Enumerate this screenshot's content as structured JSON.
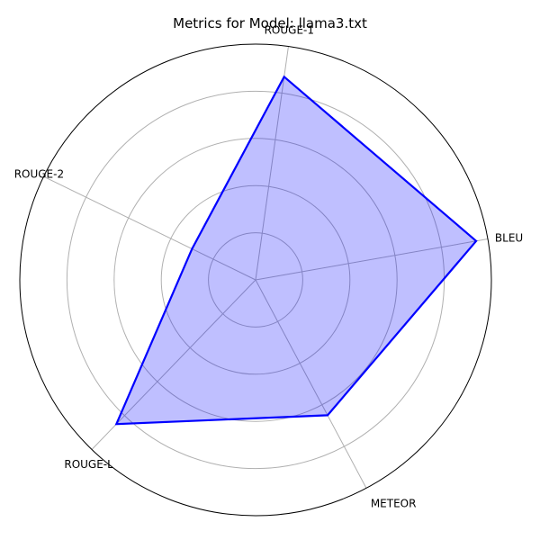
{
  "chart_data": {
    "type": "radar",
    "title": "Metrics for Model: llama3.txt",
    "categories": [
      "BLEU",
      "ROUGE-1",
      "ROUGE-2",
      "ROUGE-L",
      "METEOR"
    ],
    "values": [
      0.95,
      0.87,
      0.3,
      0.85,
      0.65
    ],
    "rlim": [
      0,
      1
    ],
    "rgrid": [
      0.2,
      0.4,
      0.6,
      0.8,
      1.0
    ],
    "grid": true,
    "legend": "none",
    "colors": {
      "line": "#0000ff",
      "fill": "#0000ff",
      "grid": "#b0b0b0",
      "frame": "#000000"
    }
  }
}
